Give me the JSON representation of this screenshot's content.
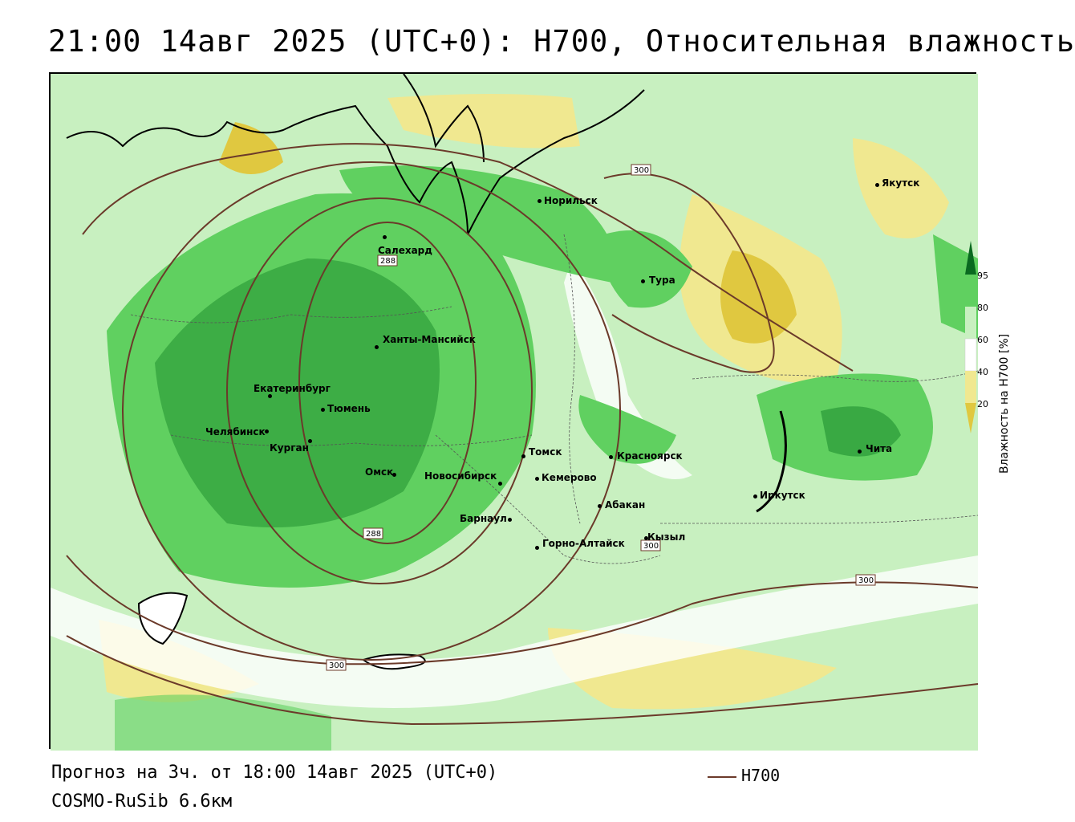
{
  "title": "21:00 14авг 2025 (UTC+0): H700, Относительная влажность",
  "footer": {
    "forecast": "Прогноз на 3ч. от 18:00 14авг 2025 (UTC+0)",
    "model": "COSMO-RuSib 6.6км"
  },
  "legend": {
    "line_label": "H700",
    "line_color": "#6b3a2a"
  },
  "colorbar": {
    "title": "Влажность на H700 [%]",
    "ticks": [
      "95",
      "80",
      "60",
      "40",
      "20"
    ],
    "colors": {
      "very_dry": "#e0c840",
      "dry": "#f0e890",
      "neutral": "#ffffff",
      "moist": "#c8f0c0",
      "wet": "#60d060",
      "very_wet": "#209030",
      "saturated": "#0a6a20"
    }
  },
  "cities": [
    {
      "name": "Салехард"
    },
    {
      "name": "Норильск"
    },
    {
      "name": "Якутск"
    },
    {
      "name": "Тура"
    },
    {
      "name": "Ханты-Мансийск"
    },
    {
      "name": "Екатеринбург"
    },
    {
      "name": "Тюмень"
    },
    {
      "name": "Челябинск"
    },
    {
      "name": "Курган"
    },
    {
      "name": "Омск"
    },
    {
      "name": "Новосибирск"
    },
    {
      "name": "Томск"
    },
    {
      "name": "Кемерово"
    },
    {
      "name": "Красноярск"
    },
    {
      "name": "Барнаул"
    },
    {
      "name": "Абакан"
    },
    {
      "name": "Горно-Алтайск"
    },
    {
      "name": "Кызыл"
    },
    {
      "name": "Иркутск"
    },
    {
      "name": "Чита"
    }
  ],
  "isolines": {
    "labels": [
      "288",
      "288",
      "300",
      "300",
      "300",
      "300"
    ]
  }
}
